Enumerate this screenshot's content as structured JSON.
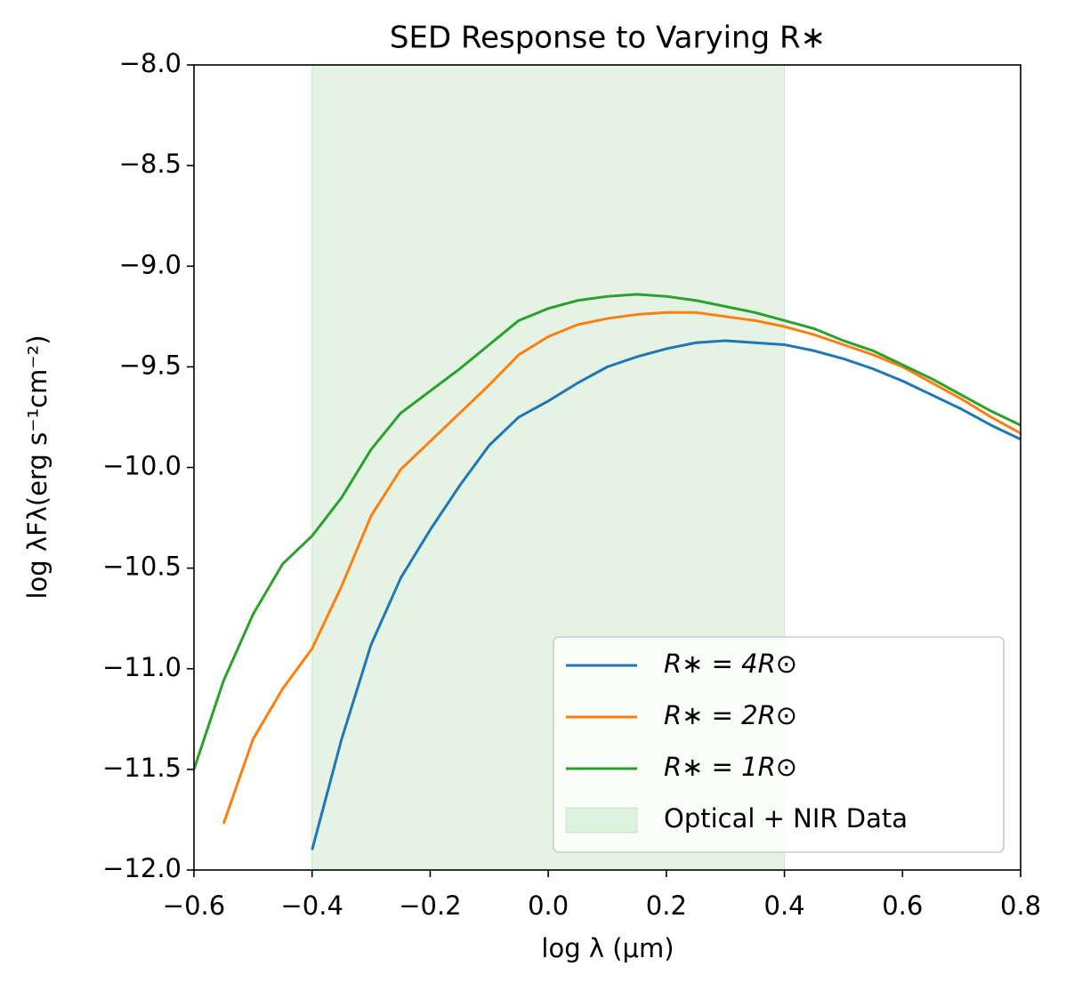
{
  "chart_data": {
    "type": "line",
    "title": "SED Response to Varying R∗",
    "x_label": "log λ (μm)",
    "y_label": "log λFλ(erg   s⁻¹cm⁻²)",
    "xlim": [
      -0.6,
      0.8
    ],
    "ylim": [
      -12,
      -8
    ],
    "xticks": [
      {
        "value": -0.6,
        "label": "−0.6"
      },
      {
        "value": -0.4,
        "label": "−0.4"
      },
      {
        "value": -0.2,
        "label": "−0.2"
      },
      {
        "value": 0,
        "label": "0.0"
      },
      0.2,
      0.4,
      0.6,
      0.8
    ],
    "yticks": [
      {
        "value": -8,
        "label": "−8.0"
      },
      {
        "value": -8.5,
        "label": "−8.5"
      },
      {
        "value": -9,
        "label": "−9.0"
      },
      {
        "value": -9.5,
        "label": "−9.5"
      },
      {
        "value": -10,
        "label": "−10.0"
      },
      {
        "value": -10.5,
        "label": "−10.5"
      },
      {
        "value": -11,
        "label": "−11.0"
      },
      {
        "value": -11.5,
        "label": "−11.5"
      },
      {
        "value": -12,
        "label": "−12.0"
      }
    ],
    "grid": false,
    "legend": "lower right",
    "x": [
      -0.6,
      -0.55,
      -0.5,
      -0.45,
      -0.4,
      -0.35,
      -0.3,
      -0.25,
      -0.2,
      -0.15,
      -0.1,
      -0.05,
      0,
      0.05,
      0.1,
      0.15,
      0.2,
      0.25,
      0.3,
      0.35,
      0.4,
      0.45,
      0.5,
      0.55,
      0.6,
      0.65,
      0.7,
      0.75,
      0.8
    ],
    "series": [
      {
        "name": "R∗ = 4R⊙",
        "color": "#1f77b4",
        "values": [
          null,
          null,
          null,
          null,
          -11.9,
          -11.35,
          -10.88,
          -10.55,
          -10.31,
          -10.09,
          -9.89,
          -9.75,
          -9.67,
          -9.58,
          -9.5,
          -9.45,
          -9.41,
          -9.38,
          -9.37,
          -9.38,
          -9.39,
          -9.42,
          -9.46,
          -9.51,
          -9.57,
          -9.64,
          -9.71,
          -9.79,
          -9.86
        ]
      },
      {
        "name": "R∗ = 2R⊙",
        "color": "#ff7f0e",
        "values": [
          null,
          -11.77,
          -11.35,
          -11.1,
          -10.9,
          -10.59,
          -10.24,
          -10.01,
          -9.87,
          -9.73,
          -9.59,
          -9.44,
          -9.35,
          -9.29,
          -9.26,
          -9.24,
          -9.23,
          -9.23,
          -9.25,
          -9.27,
          -9.3,
          -9.34,
          -9.39,
          -9.44,
          -9.5,
          -9.58,
          -9.66,
          -9.75,
          -9.83
        ]
      },
      {
        "name": "R∗ = 1R⊙",
        "color": "#2ca02c",
        "values": [
          -11.5,
          -11.06,
          -10.73,
          -10.48,
          -10.34,
          -10.15,
          -9.91,
          -9.73,
          -9.62,
          -9.51,
          -9.39,
          -9.27,
          -9.21,
          -9.17,
          -9.15,
          -9.14,
          -9.15,
          -9.17,
          -9.2,
          -9.23,
          -9.27,
          -9.31,
          -9.37,
          -9.42,
          -9.49,
          -9.56,
          -9.64,
          -9.72,
          -9.79
        ]
      }
    ],
    "spans": [
      {
        "name": "Optical + NIR Data",
        "color": "#2ca02c",
        "opacity": 0.13,
        "xmin": -0.4,
        "xmax": 0.4
      }
    ]
  }
}
